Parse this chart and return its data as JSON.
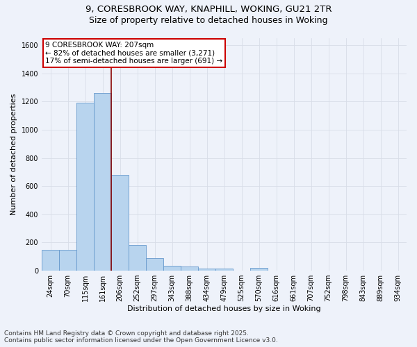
{
  "title_line1": "9, CORESBROOK WAY, KNAPHILL, WOKING, GU21 2TR",
  "title_line2": "Size of property relative to detached houses in Woking",
  "xlabel": "Distribution of detached houses by size in Woking",
  "ylabel": "Number of detached properties",
  "categories": [
    "24sqm",
    "70sqm",
    "115sqm",
    "161sqm",
    "206sqm",
    "252sqm",
    "297sqm",
    "343sqm",
    "388sqm",
    "434sqm",
    "479sqm",
    "525sqm",
    "570sqm",
    "616sqm",
    "661sqm",
    "707sqm",
    "752sqm",
    "798sqm",
    "843sqm",
    "889sqm",
    "934sqm"
  ],
  "values": [
    150,
    150,
    1190,
    1260,
    680,
    185,
    90,
    35,
    30,
    15,
    15,
    0,
    20,
    0,
    0,
    0,
    0,
    0,
    0,
    0,
    0
  ],
  "bar_color": "#b8d4ee",
  "bar_edge_color": "#6699cc",
  "vline_x_index": 3.5,
  "annotation_text_line1": "9 CORESBROOK WAY: 207sqm",
  "annotation_text_line2": "← 82% of detached houses are smaller (3,271)",
  "annotation_text_line3": "17% of semi-detached houses are larger (691) →",
  "annotation_box_facecolor": "#ffffff",
  "annotation_box_edgecolor": "#cc0000",
  "vline_color": "#880000",
  "ylim": [
    0,
    1650
  ],
  "yticks": [
    0,
    200,
    400,
    600,
    800,
    1000,
    1200,
    1400,
    1600
  ],
  "footnote_line1": "Contains HM Land Registry data © Crown copyright and database right 2025.",
  "footnote_line2": "Contains public sector information licensed under the Open Government Licence v3.0.",
  "bg_color": "#eef2fa",
  "grid_color": "#d8dde8",
  "title_fontsize": 9.5,
  "axis_label_fontsize": 8,
  "tick_fontsize": 7,
  "annotation_fontsize": 7.5,
  "footnote_fontsize": 6.5
}
